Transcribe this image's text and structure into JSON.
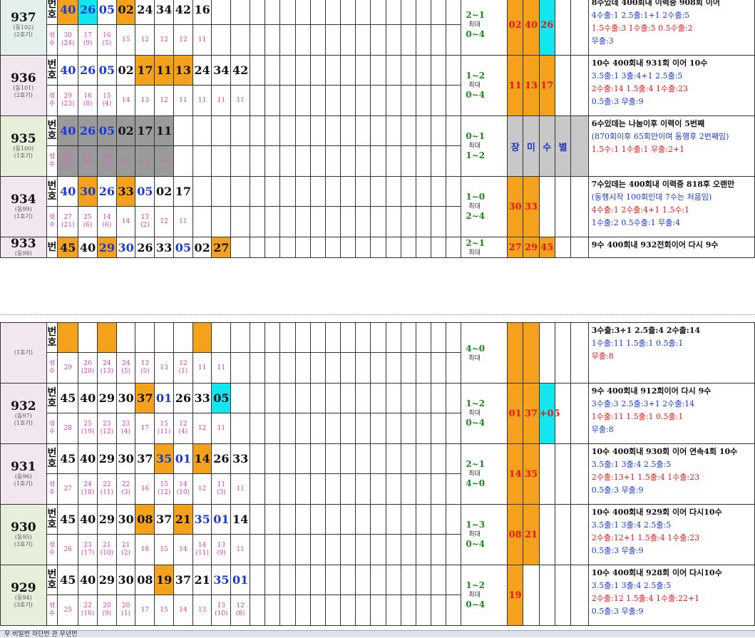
{
  "colors": {
    "orange": "#f4a11b",
    "cyan": "#12e6ef",
    "gray": "#9a9a9a",
    "red": "#e31919",
    "blue": "#1b39d4",
    "green": "#1a8a1a",
    "pink": "#d43ab0"
  },
  "labels": {
    "bun": "번",
    "ho": "호",
    "nuk": "섞",
    "su": "수",
    "max": "최대"
  },
  "sections": [
    {
      "rounds": [
        {
          "round": "937",
          "sub1": "(동102)",
          "sub2": "(2호기)",
          "bg": "bgb",
          "nums": [
            {
              "v": "40",
              "c": "org",
              "t": "blue"
            },
            {
              "v": "26",
              "c": "cyan",
              "t": "blue"
            },
            {
              "v": "05",
              "c": "",
              "t": "blue"
            },
            {
              "v": "02",
              "c": "org",
              "t": ""
            },
            {
              "v": "24",
              "c": "",
              "t": ""
            },
            {
              "v": "34",
              "c": "",
              "t": ""
            },
            {
              "v": "42",
              "c": "",
              "t": ""
            },
            {
              "v": "16",
              "c": "",
              "t": ""
            }
          ],
          "cnts": [
            "30\n(24)",
            "17\n(9)",
            "16\n(5)",
            "15",
            "12",
            "12",
            "12",
            "11"
          ],
          "range_top": "2~1",
          "range_bot": "0~4",
          "sel": [
            "02",
            "40",
            "26"
          ],
          "selcls": [
            "org",
            "org",
            "cyan"
          ],
          "notes": [
            "8수있데 400회내 이력중 908회 이어",
            "4수출:1  2.5출:1+1  2수출:5",
            "1.5수출:3  1수출:5  0.5수출:2",
            "무출:3"
          ]
        },
        {
          "round": "936",
          "sub1": "(동101)",
          "sub2": "(2호기)",
          "bg": "bgp",
          "nums": [
            {
              "v": "40",
              "c": "",
              "t": "blue"
            },
            {
              "v": "26",
              "c": "",
              "t": "blue"
            },
            {
              "v": "05",
              "c": "",
              "t": "blue"
            },
            {
              "v": "02",
              "c": "",
              "t": ""
            },
            {
              "v": "17",
              "c": "org",
              "t": ""
            },
            {
              "v": "11",
              "c": "org",
              "t": ""
            },
            {
              "v": "13",
              "c": "org",
              "t": ""
            },
            {
              "v": "24",
              "c": "",
              "t": ""
            },
            {
              "v": "34",
              "c": "",
              "t": ""
            },
            {
              "v": "42",
              "c": "",
              "t": ""
            }
          ],
          "cnts": [
            "29\n(23)",
            "16\n(8)",
            "15\n(4)",
            "14",
            "13",
            "12",
            "11",
            "11",
            "11",
            "11"
          ],
          "range_top": "1~2",
          "range_bot": "0~4",
          "sel": [
            "11",
            "13",
            "17"
          ],
          "selcls": [
            "org",
            "org",
            "org"
          ],
          "notes": [
            "10수 400회내 931회 이어 10수",
            "3.5출:1  3출:4+1  2.5출:5",
            "2수출:14  1.5출:4  1수출:23",
            "0.5출:3  무출:9"
          ]
        },
        {
          "round": "935",
          "sub1": "(동100)",
          "sub2": "(1호기)",
          "bg": "bgg",
          "nums": [
            {
              "v": "40",
              "c": "gray",
              "t": "blue"
            },
            {
              "v": "26",
              "c": "gray",
              "t": "blue"
            },
            {
              "v": "05",
              "c": "gray",
              "t": "blue"
            },
            {
              "v": "02",
              "c": "gray",
              "t": ""
            },
            {
              "v": "17",
              "c": "gray",
              "t": ""
            },
            {
              "v": "11",
              "c": "gray",
              "t": ""
            }
          ],
          "cnts": [
            "28\n(22)",
            "15\n(7)",
            "14\n(3)",
            "13",
            "12",
            "11"
          ],
          "range_top": "0~1",
          "range_bot": "1~2",
          "word": [
            "장",
            "미",
            "수",
            "별"
          ],
          "notes": [
            "6수있데는 나눔이후 이력이 5번째",
            "(870회이후 65회만이며 동행후 2번째임)",
            "1.5수:1  1수출:1  무출:2+1"
          ]
        },
        {
          "round": "934",
          "sub1": "(동99)",
          "sub2": "(1호기)",
          "bg": "bgp",
          "nums": [
            {
              "v": "40",
              "c": "",
              "t": "blue"
            },
            {
              "v": "30",
              "c": "org",
              "t": "blue"
            },
            {
              "v": "26",
              "c": "",
              "t": "blue"
            },
            {
              "v": "33",
              "c": "org",
              "t": ""
            },
            {
              "v": "05",
              "c": "",
              "t": "blue"
            },
            {
              "v": "02",
              "c": "",
              "t": ""
            },
            {
              "v": "17",
              "c": "",
              "t": ""
            }
          ],
          "cnts": [
            "27\n(21)",
            "25\n(6)",
            "14\n(6)",
            "14",
            "13\n(2)",
            "12",
            "11"
          ],
          "range_top": "1~0",
          "range_bot": "2~4",
          "sel": [
            "30",
            "33"
          ],
          "selcls": [
            "org",
            "org"
          ],
          "notes": [
            "7수있데는 400회내 이력중 818후 오랜만",
            "(동행시작 100회인데 7수는 처음임)",
            "4수출:1  2수출:4+1  1.5수:1",
            "1수출:2  0.5수출:1  무출:4"
          ]
        },
        {
          "round": "933",
          "sub1": "(동98)",
          "sub2": "",
          "bg": "bgp",
          "single": true,
          "nums": [
            {
              "v": "45",
              "c": "org",
              "t": ""
            },
            {
              "v": "40",
              "c": "",
              "t": ""
            },
            {
              "v": "29",
              "c": "org",
              "t": "blue"
            },
            {
              "v": "30",
              "c": "",
              "t": "blue"
            },
            {
              "v": "26",
              "c": "",
              "t": ""
            },
            {
              "v": "33",
              "c": "",
              "t": ""
            },
            {
              "v": "05",
              "c": "",
              "t": "blue"
            },
            {
              "v": "02",
              "c": "",
              "t": ""
            },
            {
              "v": "27",
              "c": "org",
              "t": ""
            }
          ],
          "range_top": "2~1",
          "sel": [
            "27",
            "29",
            "45"
          ],
          "selcls": [
            "org",
            "org",
            "org"
          ],
          "notes": [
            "9수 400회내 932전회이어 다시 9수"
          ]
        }
      ]
    },
    {
      "rounds": [
        {
          "round": "",
          "sub1": "",
          "sub2": "(1호기)",
          "bg": "bgp",
          "partial": true,
          "nums": [
            {
              "v": "",
              "c": "org",
              "t": ""
            },
            {
              "v": "",
              "c": "",
              "t": ""
            },
            {
              "v": "",
              "c": "org",
              "t": ""
            },
            {
              "v": "",
              "c": "",
              "t": ""
            },
            {
              "v": "",
              "c": "",
              "t": ""
            },
            {
              "v": "",
              "c": "",
              "t": ""
            },
            {
              "v": "",
              "c": "",
              "t": ""
            },
            {
              "v": "",
              "c": "org",
              "t": ""
            }
          ],
          "cnts": [
            "29",
            "26\n(20)",
            "24\n(13)",
            "24\n(5)",
            "13\n(5)",
            "13",
            "12\n(1)",
            "11",
            "11"
          ],
          "range_top": "4~0",
          "sel": [
            "",
            "",
            ""
          ],
          "selcls": [
            "org",
            "org",
            ""
          ],
          "notes": [
            "3수출:3+1  2.5출:4  2수출:14",
            "1수출:11  1.5출:1  0.5출:1",
            "무출:8"
          ]
        },
        {
          "round": "932",
          "sub1": "(동97)",
          "sub2": "(1호기)",
          "bg": "bgp",
          "nums": [
            {
              "v": "45",
              "c": "",
              "t": ""
            },
            {
              "v": "40",
              "c": "",
              "t": ""
            },
            {
              "v": "29",
              "c": "",
              "t": ""
            },
            {
              "v": "30",
              "c": "",
              "t": ""
            },
            {
              "v": "37",
              "c": "org",
              "t": ""
            },
            {
              "v": "01",
              "c": "",
              "t": "blue"
            },
            {
              "v": "26",
              "c": "",
              "t": ""
            },
            {
              "v": "33",
              "c": "",
              "t": ""
            },
            {
              "v": "05",
              "c": "cyan",
              "t": ""
            }
          ],
          "cnts": [
            "28",
            "25\n(19)",
            "23\n(12)",
            "23\n(4)",
            "17",
            "15\n(11)",
            "12\n(4)",
            "12",
            "11"
          ],
          "range_top": "1~2",
          "range_bot": "0~4",
          "sel": [
            "01",
            "37",
            "+05"
          ],
          "selcls": [
            "org",
            "org",
            "cyan"
          ],
          "notes": [
            "9수 400회내 912회이어 다시 9수",
            "3수출:3  2.5출:3+1  2수출:14",
            "1수출:11  1.5출:1  0.5출:1",
            "무출:8"
          ]
        },
        {
          "round": "931",
          "sub1": "(동96)",
          "sub2": "(1호기)",
          "bg": "bgp",
          "nums": [
            {
              "v": "45",
              "c": "",
              "t": ""
            },
            {
              "v": "40",
              "c": "",
              "t": ""
            },
            {
              "v": "29",
              "c": "",
              "t": ""
            },
            {
              "v": "30",
              "c": "",
              "t": ""
            },
            {
              "v": "37",
              "c": "",
              "t": ""
            },
            {
              "v": "35",
              "c": "org",
              "t": "blue"
            },
            {
              "v": "01",
              "c": "",
              "t": "blue"
            },
            {
              "v": "14",
              "c": "org",
              "t": ""
            },
            {
              "v": "26",
              "c": "",
              "t": ""
            },
            {
              "v": "33",
              "c": "",
              "t": ""
            }
          ],
          "cnts": [
            "27",
            "24\n(18)",
            "22\n(11)",
            "22\n(3)",
            "16",
            "15\n(12)",
            "14\n(10)",
            "12",
            "11\n(3)",
            "11"
          ],
          "range_top": "2~1",
          "range_bot": "4~0",
          "sel": [
            "14",
            "35"
          ],
          "selcls": [
            "org",
            "org"
          ],
          "notes": [
            "10수 400회내 930회 이어 연속4회 10수",
            "3.5출:1  3출:4  2.5출:5",
            "2수출:13+1  1.5출:4  1수출:23",
            "0.5출:3  무출:9"
          ]
        },
        {
          "round": "930",
          "sub1": "(동95)",
          "sub2": "(3호기)",
          "bg": "bgg",
          "nums": [
            {
              "v": "45",
              "c": "",
              "t": ""
            },
            {
              "v": "40",
              "c": "",
              "t": ""
            },
            {
              "v": "29",
              "c": "",
              "t": ""
            },
            {
              "v": "30",
              "c": "",
              "t": ""
            },
            {
              "v": "08",
              "c": "org",
              "t": ""
            },
            {
              "v": "37",
              "c": "",
              "t": ""
            },
            {
              "v": "21",
              "c": "org",
              "t": ""
            },
            {
              "v": "35",
              "c": "",
              "t": "blue"
            },
            {
              "v": "01",
              "c": "",
              "t": "blue"
            },
            {
              "v": "14",
              "c": "",
              "t": ""
            }
          ],
          "cnts": [
            "26",
            "23\n(17)",
            "21\n(10)",
            "21\n(2)",
            "18",
            "15",
            "14",
            "14\n(11)",
            "13\n(9)",
            "11"
          ],
          "range_top": "1~3",
          "range_bot": "0~4",
          "sel": [
            "08",
            "21"
          ],
          "selcls": [
            "org",
            "org"
          ],
          "notes": [
            "10수 400회내 929회 이어 다시10수",
            "3.5출:1  3출:4  2.5출:5",
            "2수출:12+1  1.5출:4  1수출:23",
            "0.5출:3  무출:9"
          ]
        },
        {
          "round": "929",
          "sub1": "(동94)",
          "sub2": "(3호기)",
          "bg": "bgg",
          "nums": [
            {
              "v": "45",
              "c": "",
              "t": ""
            },
            {
              "v": "40",
              "c": "",
              "t": ""
            },
            {
              "v": "29",
              "c": "",
              "t": ""
            },
            {
              "v": "30",
              "c": "",
              "t": ""
            },
            {
              "v": "08",
              "c": "",
              "t": ""
            },
            {
              "v": "19",
              "c": "org",
              "t": ""
            },
            {
              "v": "37",
              "c": "",
              "t": ""
            },
            {
              "v": "21",
              "c": "",
              "t": ""
            },
            {
              "v": "35",
              "c": "",
              "t": "blue"
            },
            {
              "v": "01",
              "c": "",
              "t": "blue"
            }
          ],
          "cnts": [
            "25",
            "22\n(16)",
            "20\n(9)",
            "20\n(1)",
            "17",
            "15",
            "14",
            "13",
            "13\n(10)",
            "12\n(8)"
          ],
          "range_top": "1~2",
          "range_bot": "0~4",
          "sel": [
            "19"
          ],
          "selcls": [
            "org"
          ],
          "notes": [
            "10수 400회내 928회 이어 다시10수",
            "3.5출:1  3출:4  2.5출:5",
            "2수출:12  1.5출:4  1수출:22+1",
            "0.5출:3  무출:9"
          ]
        }
      ]
    }
  ],
  "status": "우 비밀번 하단번 관 우년번"
}
